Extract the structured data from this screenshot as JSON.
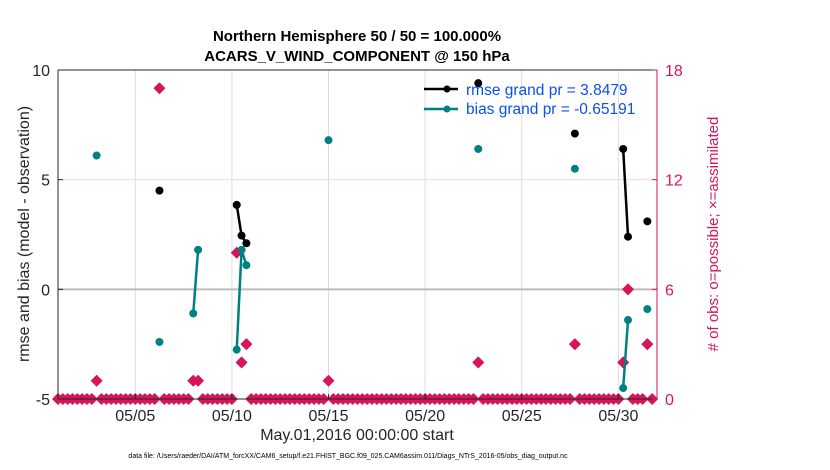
{
  "chart_data": {
    "type": "line",
    "title": [
      "Northern Hemisphere 50 / 50 = 100.000%",
      "ACARS_V_WIND_COMPONENT @ 150 hPa"
    ],
    "xlabel": "May.01,2016 00:00:00 start",
    "ylabel": "rmse and bias (model - observation)",
    "ylabel_right": "# of obs: o=possible; ×=assimilated",
    "footer": "data file: /Users/raeder/DAI/ATM_forcXX/CAM6_setup/f.e21.FHIST_BGC.f09_025.CAM6assim.011/Diags_NTrS_2016-05/obs_diag_output.nc",
    "x_units": "days since 05/01 00:00",
    "xlim": [
      0,
      31
    ],
    "ylim": [
      -5,
      10
    ],
    "ylim_right": [
      0,
      18
    ],
    "xticks": [
      {
        "value": 4,
        "label": "05/05"
      },
      {
        "value": 9,
        "label": "05/10"
      },
      {
        "value": 14,
        "label": "05/15"
      },
      {
        "value": 19,
        "label": "05/20"
      },
      {
        "value": 24,
        "label": "05/25"
      },
      {
        "value": 29,
        "label": "05/30"
      }
    ],
    "yticks": [
      {
        "value": -5,
        "label": "-5"
      },
      {
        "value": 0,
        "label": "0"
      },
      {
        "value": 5,
        "label": "5"
      },
      {
        "value": 10,
        "label": "10"
      }
    ],
    "yticks_right": [
      {
        "value": 0,
        "label": "0"
      },
      {
        "value": 6,
        "label": "6"
      },
      {
        "value": 12,
        "label": "12"
      },
      {
        "value": 18,
        "label": "18"
      }
    ],
    "grid": true,
    "legend": {
      "placement": "top-right",
      "entries": [
        "rmse grand pr = 3.8479",
        "bias grand pr = -0.65191"
      ]
    },
    "series": [
      {
        "name": "rmse",
        "color": "#000000",
        "points": [
          [
            5.25,
            4.5
          ],
          [
            9.25,
            3.85
          ],
          [
            9.5,
            2.45
          ],
          [
            9.75,
            2.1
          ],
          [
            21.75,
            9.4
          ],
          [
            26.75,
            7.1
          ],
          [
            29.25,
            6.4
          ],
          [
            29.5,
            2.4
          ],
          [
            30.5,
            3.1
          ]
        ]
      },
      {
        "name": "bias",
        "color": "#008080",
        "points": [
          [
            2.0,
            6.1
          ],
          [
            5.25,
            -2.4
          ],
          [
            7.0,
            -1.1
          ],
          [
            7.25,
            1.8
          ],
          [
            9.25,
            -2.75
          ],
          [
            9.5,
            1.8
          ],
          [
            9.75,
            1.1
          ],
          [
            14.0,
            6.8
          ],
          [
            21.75,
            6.4
          ],
          [
            26.75,
            5.5
          ],
          [
            29.25,
            -4.5
          ],
          [
            29.5,
            -1.4
          ],
          [
            30.5,
            -0.9
          ]
        ]
      },
      {
        "name": "obs count",
        "axis": "right",
        "color": "#d6155a",
        "nonzero_points": [
          [
            2.0,
            1
          ],
          [
            5.25,
            17
          ],
          [
            7.0,
            1
          ],
          [
            7.25,
            1
          ],
          [
            9.25,
            8
          ],
          [
            9.5,
            2
          ],
          [
            9.75,
            3
          ],
          [
            14.0,
            1
          ],
          [
            21.75,
            2
          ],
          [
            26.75,
            3
          ],
          [
            29.25,
            2
          ],
          [
            29.5,
            6
          ],
          [
            30.5,
            3
          ]
        ],
        "bin_step_days": 0.25,
        "other_bins_value": 0
      }
    ]
  }
}
